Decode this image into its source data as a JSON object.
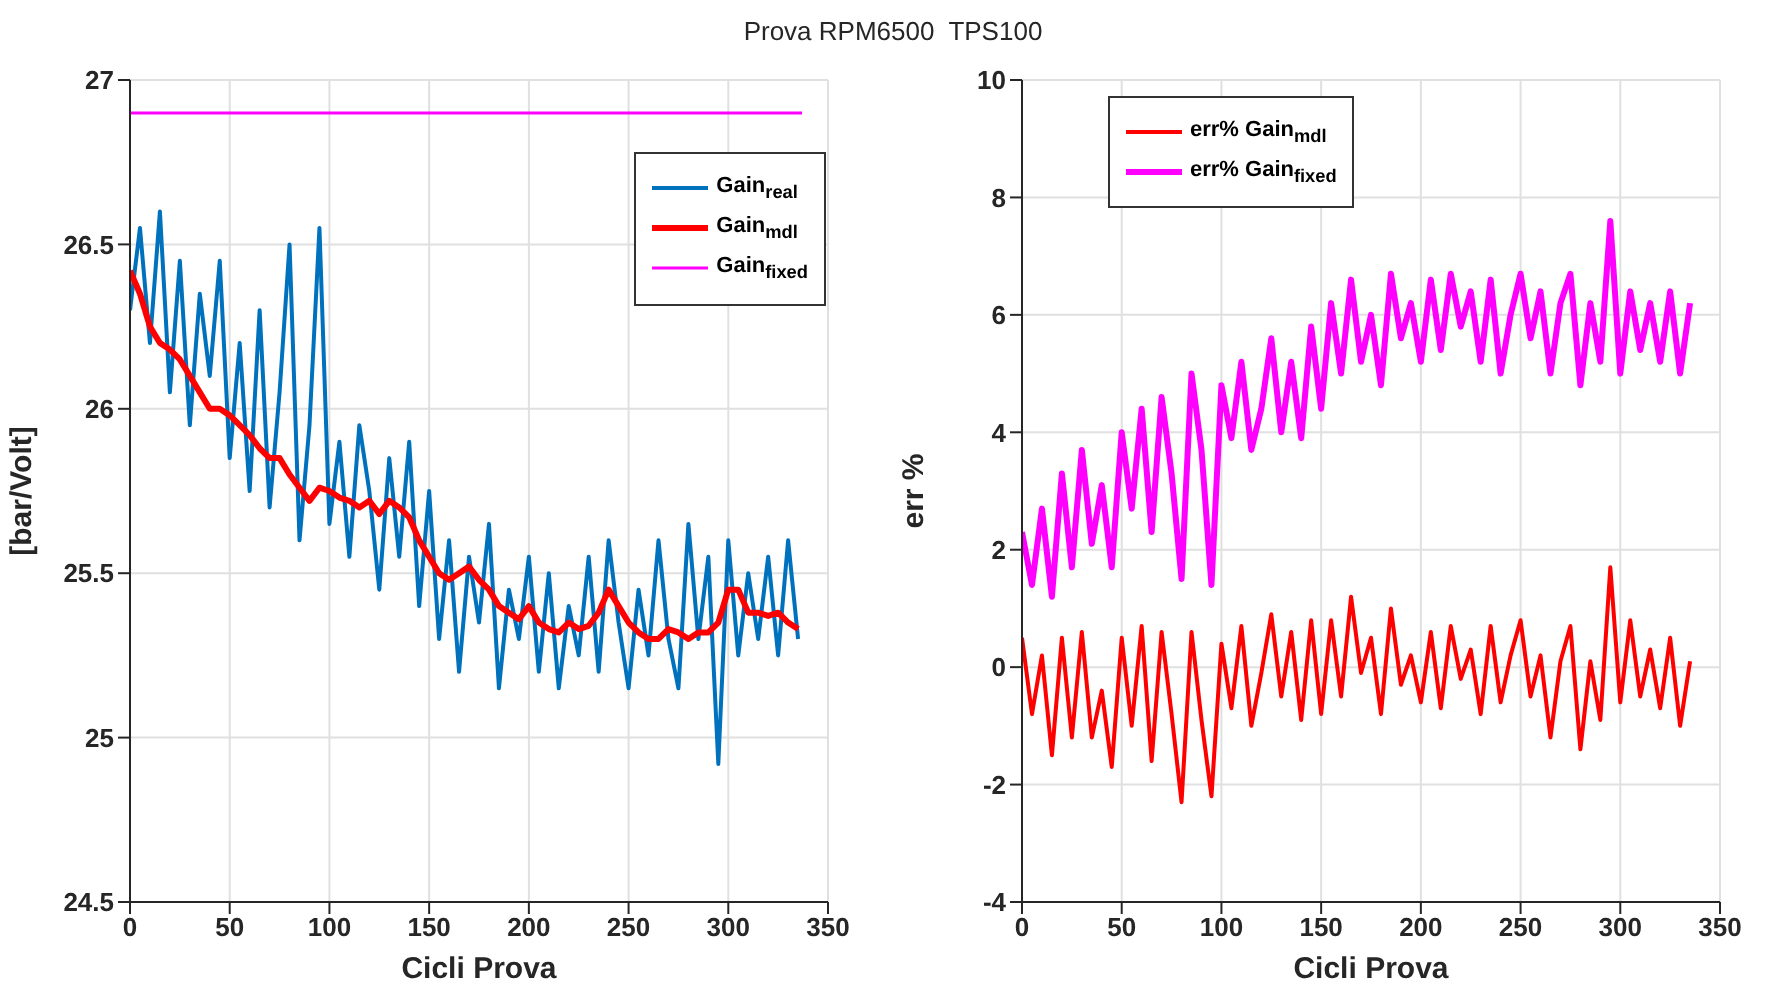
{
  "chart_data": [
    {
      "type": "line",
      "title": "Prova RPM6500  TPS100",
      "xlabel": "Cicli Prova",
      "ylabel": "[bar/Volt]",
      "xlim": [
        0,
        350
      ],
      "xticks": [
        0,
        50,
        100,
        150,
        200,
        250,
        300,
        350
      ],
      "ylim": [
        24.5,
        27
      ],
      "yticks": [
        24.5,
        25,
        25.5,
        26,
        26.5,
        27
      ],
      "grid": true,
      "legend": "top right",
      "marker": "none",
      "line_style": "solid",
      "x": [
        0,
        5,
        10,
        15,
        20,
        25,
        30,
        35,
        40,
        45,
        50,
        55,
        60,
        65,
        70,
        75,
        80,
        85,
        90,
        95,
        100,
        105,
        110,
        115,
        120,
        125,
        130,
        135,
        140,
        145,
        150,
        155,
        160,
        165,
        170,
        175,
        180,
        185,
        190,
        195,
        200,
        205,
        210,
        215,
        220,
        225,
        230,
        235,
        240,
        245,
        250,
        255,
        260,
        265,
        270,
        275,
        280,
        285,
        290,
        295,
        300,
        305,
        310,
        315,
        320,
        325,
        330,
        335
      ],
      "series": [
        {
          "name": "Gain$_{real}$",
          "color": "#0072bd",
          "values": [
            26.3,
            26.55,
            26.2,
            26.6,
            26.05,
            26.45,
            25.95,
            26.35,
            26.1,
            26.45,
            25.85,
            26.2,
            25.75,
            26.3,
            25.7,
            26.05,
            26.5,
            25.6,
            25.95,
            26.55,
            25.65,
            25.9,
            25.55,
            25.95,
            25.75,
            25.45,
            25.85,
            25.55,
            25.9,
            25.4,
            25.75,
            25.3,
            25.6,
            25.2,
            25.55,
            25.35,
            25.65,
            25.15,
            25.45,
            25.3,
            25.55,
            25.2,
            25.5,
            25.15,
            25.4,
            25.25,
            25.55,
            25.2,
            25.6,
            25.35,
            25.15,
            25.45,
            25.25,
            25.6,
            25.3,
            25.15,
            25.65,
            25.3,
            25.55,
            24.92,
            25.6,
            25.25,
            25.5,
            25.3,
            25.55,
            25.25,
            25.6,
            25.3
          ]
        },
        {
          "name": "Gain$_{mdl}$",
          "color": "#ff0000",
          "values": [
            26.42,
            26.35,
            26.25,
            26.2,
            26.18,
            26.15,
            26.1,
            26.05,
            26.0,
            26.0,
            25.98,
            25.95,
            25.92,
            25.88,
            25.85,
            25.85,
            25.8,
            25.76,
            25.72,
            25.76,
            25.75,
            25.73,
            25.72,
            25.7,
            25.72,
            25.68,
            25.72,
            25.7,
            25.67,
            25.6,
            25.55,
            25.5,
            25.48,
            25.5,
            25.52,
            25.48,
            25.45,
            25.4,
            25.38,
            25.36,
            25.4,
            25.35,
            25.33,
            25.32,
            25.35,
            25.33,
            25.34,
            25.38,
            25.45,
            25.4,
            25.35,
            25.32,
            25.3,
            25.3,
            25.33,
            25.32,
            25.3,
            25.32,
            25.32,
            25.35,
            25.45,
            25.45,
            25.38,
            25.38,
            25.37,
            25.38,
            25.35,
            25.33
          ]
        },
        {
          "name": "Gain$_{fixed}$",
          "color": "#ff00ff",
          "x": [
            0,
            337
          ],
          "values": [
            26.9,
            26.9
          ]
        }
      ]
    },
    {
      "type": "line",
      "xlabel": "Cicli Prova",
      "ylabel": "err %",
      "xlim": [
        0,
        350
      ],
      "xticks": [
        0,
        50,
        100,
        150,
        200,
        250,
        300,
        350
      ],
      "ylim": [
        -4,
        10
      ],
      "yticks": [
        -4,
        -2,
        0,
        2,
        4,
        6,
        8,
        10
      ],
      "grid": true,
      "legend": "top left",
      "marker": "none",
      "line_style": "solid",
      "x": [
        0,
        5,
        10,
        15,
        20,
        25,
        30,
        35,
        40,
        45,
        50,
        55,
        60,
        65,
        70,
        75,
        80,
        85,
        90,
        95,
        100,
        105,
        110,
        115,
        120,
        125,
        130,
        135,
        140,
        145,
        150,
        155,
        160,
        165,
        170,
        175,
        180,
        185,
        190,
        195,
        200,
        205,
        210,
        215,
        220,
        225,
        230,
        235,
        240,
        245,
        250,
        255,
        260,
        265,
        270,
        275,
        280,
        285,
        290,
        295,
        300,
        305,
        310,
        315,
        320,
        325,
        330,
        335
      ],
      "series": [
        {
          "name": "err% Gain$_{mdl}$",
          "color": "#ff0000",
          "values": [
            0.5,
            -0.8,
            0.2,
            -1.5,
            0.5,
            -1.2,
            0.6,
            -1.2,
            -0.4,
            -1.7,
            0.5,
            -1.0,
            0.7,
            -1.6,
            0.6,
            -0.8,
            -2.3,
            0.6,
            -0.9,
            -2.2,
            0.4,
            -0.7,
            0.7,
            -1.0,
            -0.1,
            0.9,
            -0.5,
            0.6,
            -0.9,
            0.8,
            -0.8,
            0.8,
            -0.5,
            1.2,
            -0.1,
            0.5,
            -0.8,
            1.0,
            -0.3,
            0.2,
            -0.6,
            0.6,
            -0.7,
            0.7,
            -0.2,
            0.3,
            -0.8,
            0.7,
            -0.6,
            0.2,
            0.8,
            -0.5,
            0.2,
            -1.2,
            0.1,
            0.7,
            -1.4,
            0.1,
            -0.9,
            1.7,
            -0.6,
            0.8,
            -0.5,
            0.3,
            -0.7,
            0.5,
            -1.0,
            0.1
          ]
        },
        {
          "name": "err% Gain$_{fixed}$",
          "color": "#ff00ff",
          "values": [
            2.3,
            1.4,
            2.7,
            1.2,
            3.3,
            1.7,
            3.7,
            2.1,
            3.1,
            1.7,
            4.0,
            2.7,
            4.4,
            2.3,
            4.6,
            3.3,
            1.5,
            5.0,
            3.7,
            1.4,
            4.8,
            3.9,
            5.2,
            3.7,
            4.4,
            5.6,
            4.0,
            5.2,
            3.9,
            5.8,
            4.4,
            6.2,
            5.0,
            6.6,
            5.2,
            6.0,
            4.8,
            6.7,
            5.6,
            6.2,
            5.2,
            6.6,
            5.4,
            6.7,
            5.8,
            6.4,
            5.2,
            6.6,
            5.0,
            6.0,
            6.7,
            5.6,
            6.4,
            5.0,
            6.2,
            6.7,
            4.8,
            6.2,
            5.2,
            7.6,
            5.0,
            6.4,
            5.4,
            6.2,
            5.2,
            6.4,
            5.0,
            6.2
          ]
        }
      ]
    }
  ]
}
